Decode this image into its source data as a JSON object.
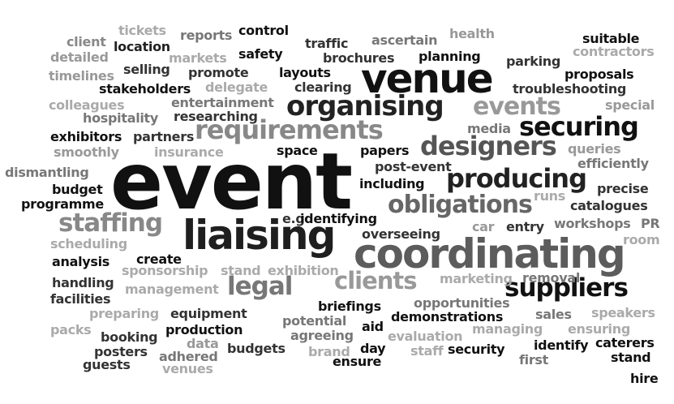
{
  "words": [
    {
      "text": "event",
      "color": "#111111"
    },
    {
      "text": "venue",
      "color": "#111111"
    },
    {
      "text": "coordinating",
      "color": "#5c5c5c"
    },
    {
      "text": "liaising",
      "color": "#1f1f1f"
    },
    {
      "text": "organising",
      "color": "#222222"
    },
    {
      "text": "requirements",
      "color": "#888888"
    },
    {
      "text": "designers",
      "color": "#555555"
    },
    {
      "text": "securing",
      "color": "#111111"
    },
    {
      "text": "events",
      "color": "#999999"
    },
    {
      "text": "producing",
      "color": "#222222"
    },
    {
      "text": "obligations",
      "color": "#666666"
    },
    {
      "text": "staffing",
      "color": "#888888"
    },
    {
      "text": "suppliers",
      "color": "#111111"
    },
    {
      "text": "legal",
      "color": "#777777"
    },
    {
      "text": "clients",
      "color": "#999999"
    },
    {
      "text": "tickets",
      "color": "#aaaaaa"
    },
    {
      "text": "reports",
      "color": "#777777"
    },
    {
      "text": "control",
      "color": "#111111"
    },
    {
      "text": "health",
      "color": "#999999"
    },
    {
      "text": "client",
      "color": "#888888"
    },
    {
      "text": "location",
      "color": "#222222"
    },
    {
      "text": "traffic",
      "color": "#333333"
    },
    {
      "text": "ascertain",
      "color": "#777777"
    },
    {
      "text": "suitable",
      "color": "#111111"
    },
    {
      "text": "detailed",
      "color": "#999999"
    },
    {
      "text": "markets",
      "color": "#aaaaaa"
    },
    {
      "text": "safety",
      "color": "#111111"
    },
    {
      "text": "brochures",
      "color": "#333333"
    },
    {
      "text": "planning",
      "color": "#111111"
    },
    {
      "text": "contractors",
      "color": "#aaaaaa"
    },
    {
      "text": "timelines",
      "color": "#999999"
    },
    {
      "text": "selling",
      "color": "#333333"
    },
    {
      "text": "promote",
      "color": "#333333"
    },
    {
      "text": "layouts",
      "color": "#111111"
    },
    {
      "text": "parking",
      "color": "#333333"
    },
    {
      "text": "proposals",
      "color": "#111111"
    },
    {
      "text": "stakeholders",
      "color": "#111111"
    },
    {
      "text": "delegate",
      "color": "#aaaaaa"
    },
    {
      "text": "clearing",
      "color": "#333333"
    },
    {
      "text": "troubleshooting",
      "color": "#333333"
    },
    {
      "text": "colleagues",
      "color": "#aaaaaa"
    },
    {
      "text": "entertainment",
      "color": "#777777"
    },
    {
      "text": "special",
      "color": "#999999"
    },
    {
      "text": "hospitality",
      "color": "#777777"
    },
    {
      "text": "researching",
      "color": "#333333"
    },
    {
      "text": "exhibitors",
      "color": "#111111"
    },
    {
      "text": "partners",
      "color": "#333333"
    },
    {
      "text": "media",
      "color": "#777777"
    },
    {
      "text": "smoothly",
      "color": "#999999"
    },
    {
      "text": "insurance",
      "color": "#aaaaaa"
    },
    {
      "text": "space",
      "color": "#111111"
    },
    {
      "text": "papers",
      "color": "#111111"
    },
    {
      "text": "queries",
      "color": "#999999"
    },
    {
      "text": "efficiently",
      "color": "#777777"
    },
    {
      "text": "dismantling",
      "color": "#777777"
    },
    {
      "text": "post-event",
      "color": "#333333"
    },
    {
      "text": "budget",
      "color": "#111111"
    },
    {
      "text": "including",
      "color": "#111111"
    },
    {
      "text": "precise",
      "color": "#333333"
    },
    {
      "text": "programme",
      "color": "#111111"
    },
    {
      "text": "runs",
      "color": "#aaaaaa"
    },
    {
      "text": "catalogues",
      "color": "#333333"
    },
    {
      "text": "e.g",
      "color": "#333333"
    },
    {
      "text": "identifying",
      "color": "#111111"
    },
    {
      "text": "car",
      "color": "#999999"
    },
    {
      "text": "entry",
      "color": "#333333"
    },
    {
      "text": "workshops",
      "color": "#777777"
    },
    {
      "text": "PR",
      "color": "#777777"
    },
    {
      "text": "scheduling",
      "color": "#aaaaaa"
    },
    {
      "text": "overseeing",
      "color": "#333333"
    },
    {
      "text": "room",
      "color": "#aaaaaa"
    },
    {
      "text": "analysis",
      "color": "#111111"
    },
    {
      "text": "create",
      "color": "#111111"
    },
    {
      "text": "sponsorship",
      "color": "#aaaaaa"
    },
    {
      "text": "stand",
      "color": "#aaaaaa"
    },
    {
      "text": "exhibition",
      "color": "#aaaaaa"
    },
    {
      "text": "handling",
      "color": "#333333"
    },
    {
      "text": "marketing",
      "color": "#aaaaaa"
    },
    {
      "text": "removal",
      "color": "#777777"
    },
    {
      "text": "management",
      "color": "#aaaaaa"
    },
    {
      "text": "facilities",
      "color": "#333333"
    },
    {
      "text": "opportunities",
      "color": "#777777"
    },
    {
      "text": "briefings",
      "color": "#111111"
    },
    {
      "text": "preparing",
      "color": "#aaaaaa"
    },
    {
      "text": "equipment",
      "color": "#333333"
    },
    {
      "text": "sales",
      "color": "#777777"
    },
    {
      "text": "speakers",
      "color": "#aaaaaa"
    },
    {
      "text": "potential",
      "color": "#777777"
    },
    {
      "text": "demonstrations",
      "color": "#111111"
    },
    {
      "text": "packs",
      "color": "#aaaaaa"
    },
    {
      "text": "booking",
      "color": "#333333"
    },
    {
      "text": "production",
      "color": "#111111"
    },
    {
      "text": "aid",
      "color": "#111111"
    },
    {
      "text": "managing",
      "color": "#aaaaaa"
    },
    {
      "text": "ensuring",
      "color": "#aaaaaa"
    },
    {
      "text": "agreeing",
      "color": "#777777"
    },
    {
      "text": "evaluation",
      "color": "#aaaaaa"
    },
    {
      "text": "posters",
      "color": "#333333"
    },
    {
      "text": "data",
      "color": "#999999"
    },
    {
      "text": "identify",
      "color": "#111111"
    },
    {
      "text": "caterers",
      "color": "#111111"
    },
    {
      "text": "adhered",
      "color": "#777777"
    },
    {
      "text": "budgets",
      "color": "#333333"
    },
    {
      "text": "brand",
      "color": "#aaaaaa"
    },
    {
      "text": "day",
      "color": "#111111"
    },
    {
      "text": "staff",
      "color": "#aaaaaa"
    },
    {
      "text": "security",
      "color": "#111111"
    },
    {
      "text": "first",
      "color": "#777777"
    },
    {
      "text": "stand",
      "color": "#111111"
    },
    {
      "text": "guests",
      "color": "#333333"
    },
    {
      "text": "venues",
      "color": "#aaaaaa"
    },
    {
      "text": "ensure",
      "color": "#111111"
    },
    {
      "text": "hire",
      "color": "#111111"
    }
  ]
}
